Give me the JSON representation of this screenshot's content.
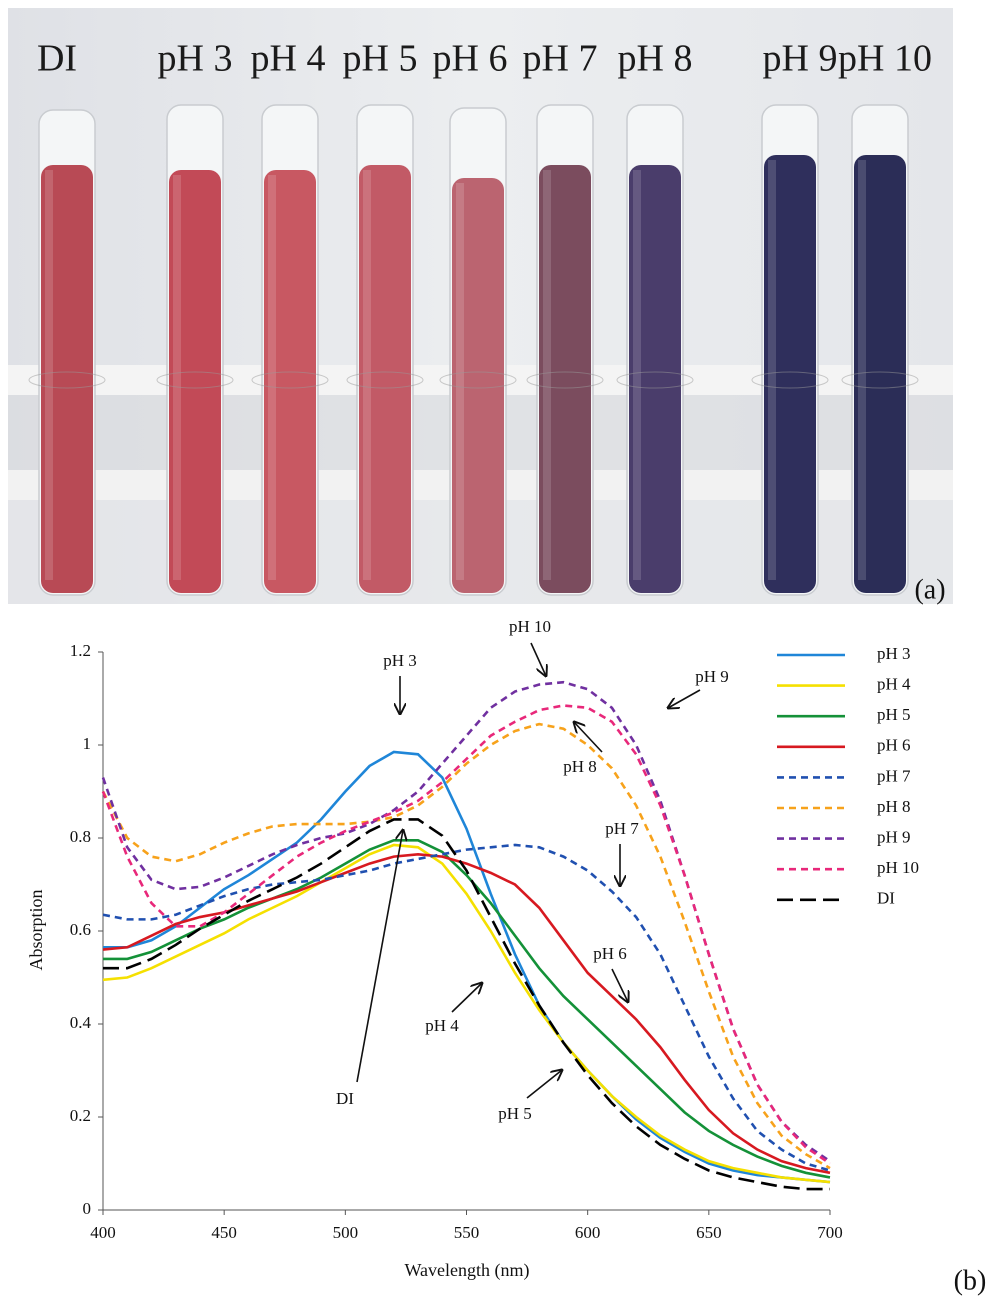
{
  "photo": {
    "labels": [
      "DI",
      "pH 3",
      "pH 4",
      "pH 5",
      "pH 6",
      "pH 7",
      "pH 8",
      "pH 9",
      "pH 10"
    ],
    "panel_label": "(a)"
  },
  "chart_data": {
    "type": "line",
    "panel_label": "(b)",
    "x_label": "Wavelength (nm)",
    "y_label": "Absorption",
    "xlim": [
      400,
      700
    ],
    "xticks": [
      400,
      450,
      500,
      550,
      600,
      650,
      700
    ],
    "ylim": [
      0,
      1.2
    ],
    "yticks": [
      0,
      0.2,
      0.4,
      0.6,
      0.8,
      1,
      1.2
    ],
    "grid": false,
    "legend": "right",
    "x": [
      400,
      410,
      420,
      430,
      440,
      450,
      460,
      470,
      480,
      490,
      500,
      510,
      520,
      530,
      540,
      550,
      560,
      570,
      580,
      590,
      600,
      610,
      620,
      630,
      640,
      650,
      660,
      670,
      680,
      690,
      700
    ],
    "series": [
      {
        "name": "pH 3",
        "color": "#1f86d8",
        "linestyle": "solid",
        "values": [
          0.565,
          0.565,
          0.58,
          0.61,
          0.65,
          0.69,
          0.72,
          0.755,
          0.79,
          0.84,
          0.9,
          0.955,
          0.985,
          0.98,
          0.93,
          0.82,
          0.68,
          0.55,
          0.44,
          0.36,
          0.3,
          0.245,
          0.195,
          0.155,
          0.125,
          0.1,
          0.085,
          0.075,
          0.07,
          0.065,
          0.06
        ]
      },
      {
        "name": "pH 4",
        "color": "#f5e000",
        "linestyle": "solid",
        "values": [
          0.495,
          0.5,
          0.52,
          0.545,
          0.57,
          0.595,
          0.625,
          0.65,
          0.675,
          0.705,
          0.735,
          0.765,
          0.785,
          0.78,
          0.745,
          0.68,
          0.6,
          0.51,
          0.43,
          0.36,
          0.3,
          0.245,
          0.2,
          0.16,
          0.13,
          0.105,
          0.09,
          0.08,
          0.07,
          0.065,
          0.06
        ]
      },
      {
        "name": "pH 5",
        "color": "#149138",
        "linestyle": "solid",
        "values": [
          0.54,
          0.54,
          0.555,
          0.58,
          0.605,
          0.625,
          0.65,
          0.67,
          0.69,
          0.715,
          0.745,
          0.775,
          0.795,
          0.795,
          0.77,
          0.72,
          0.66,
          0.59,
          0.52,
          0.46,
          0.41,
          0.36,
          0.31,
          0.26,
          0.21,
          0.17,
          0.14,
          0.115,
          0.095,
          0.08,
          0.07
        ]
      },
      {
        "name": "pH 6",
        "color": "#d71920",
        "linestyle": "solid",
        "values": [
          0.56,
          0.565,
          0.59,
          0.615,
          0.63,
          0.64,
          0.655,
          0.67,
          0.685,
          0.705,
          0.725,
          0.745,
          0.76,
          0.765,
          0.76,
          0.745,
          0.725,
          0.7,
          0.65,
          0.58,
          0.51,
          0.46,
          0.41,
          0.35,
          0.28,
          0.215,
          0.165,
          0.13,
          0.105,
          0.09,
          0.08
        ]
      },
      {
        "name": "pH 7",
        "color": "#2050b0",
        "linestyle": "dashed",
        "values": [
          0.635,
          0.625,
          0.625,
          0.635,
          0.655,
          0.675,
          0.69,
          0.7,
          0.705,
          0.71,
          0.72,
          0.73,
          0.745,
          0.755,
          0.765,
          0.775,
          0.78,
          0.785,
          0.78,
          0.76,
          0.73,
          0.685,
          0.63,
          0.55,
          0.44,
          0.33,
          0.24,
          0.17,
          0.13,
          0.1,
          0.085
        ]
      },
      {
        "name": "pH 8",
        "color": "#f7a21b",
        "linestyle": "dashed",
        "values": [
          0.9,
          0.8,
          0.76,
          0.75,
          0.765,
          0.79,
          0.81,
          0.825,
          0.83,
          0.83,
          0.83,
          0.835,
          0.845,
          0.87,
          0.91,
          0.96,
          1.0,
          1.03,
          1.045,
          1.035,
          1.0,
          0.95,
          0.87,
          0.76,
          0.62,
          0.47,
          0.33,
          0.23,
          0.16,
          0.12,
          0.09
        ]
      },
      {
        "name": "pH 9",
        "color": "#7030a0",
        "linestyle": "dashed",
        "values": [
          0.93,
          0.78,
          0.71,
          0.69,
          0.695,
          0.715,
          0.74,
          0.765,
          0.785,
          0.8,
          0.81,
          0.83,
          0.86,
          0.9,
          0.96,
          1.02,
          1.08,
          1.115,
          1.13,
          1.135,
          1.12,
          1.08,
          1.0,
          0.88,
          0.72,
          0.55,
          0.39,
          0.27,
          0.19,
          0.14,
          0.105
        ]
      },
      {
        "name": "pH 10",
        "color": "#e8287a",
        "linestyle": "dashed",
        "values": [
          0.9,
          0.76,
          0.66,
          0.61,
          0.61,
          0.64,
          0.68,
          0.72,
          0.76,
          0.79,
          0.815,
          0.835,
          0.855,
          0.88,
          0.92,
          0.97,
          1.02,
          1.05,
          1.075,
          1.085,
          1.08,
          1.05,
          0.98,
          0.87,
          0.72,
          0.55,
          0.39,
          0.27,
          0.19,
          0.135,
          0.1
        ]
      },
      {
        "name": "DI",
        "color": "#000000",
        "linestyle": "longdash",
        "values": [
          0.52,
          0.52,
          0.54,
          0.57,
          0.605,
          0.635,
          0.665,
          0.69,
          0.715,
          0.745,
          0.78,
          0.815,
          0.84,
          0.84,
          0.805,
          0.73,
          0.63,
          0.53,
          0.44,
          0.36,
          0.29,
          0.23,
          0.18,
          0.14,
          0.11,
          0.085,
          0.07,
          0.06,
          0.05,
          0.045,
          0.045
        ]
      }
    ],
    "annotations": [
      {
        "text": "pH 3"
      },
      {
        "text": "pH 10"
      },
      {
        "text": "pH 9"
      },
      {
        "text": "pH 8"
      },
      {
        "text": "pH 7"
      },
      {
        "text": "pH 6"
      },
      {
        "text": "pH 4"
      },
      {
        "text": "pH 5"
      },
      {
        "text": "DI"
      }
    ]
  }
}
